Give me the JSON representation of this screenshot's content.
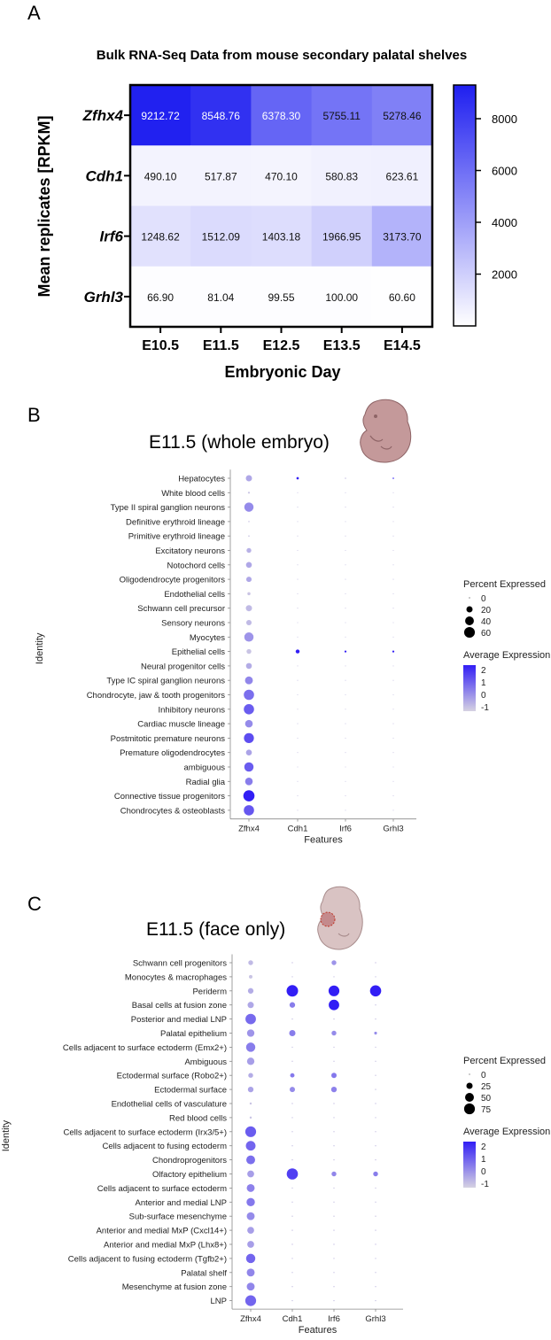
{
  "panels": {
    "a_letter": "A",
    "b_letter": "B",
    "c_letter": "C"
  },
  "chart_data": [
    {
      "type": "heatmap",
      "title": "Bulk RNA-Seq Data from mouse secondary palatal shelves",
      "xlabel": "Embryonic Day",
      "ylabel": "Mean replicates [RPKM]",
      "x": [
        "E10.5",
        "E11.5",
        "E12.5",
        "E13.5",
        "E14.5"
      ],
      "y": [
        "Zfhx4",
        "Cdh1",
        "Irf6",
        "Grhl3"
      ],
      "values": [
        [
          9212.72,
          8548.76,
          6378.3,
          5755.11,
          5278.46
        ],
        [
          490.1,
          517.87,
          470.1,
          580.83,
          623.61
        ],
        [
          1248.62,
          1512.09,
          1403.18,
          1966.95,
          3173.7
        ],
        [
          66.9,
          81.04,
          99.55,
          100.0,
          60.6
        ]
      ],
      "value_labels": [
        [
          "9212.72",
          "8548.76",
          "6378.30",
          "5755.11",
          "5278.46"
        ],
        [
          "490.10",
          "517.87",
          "470.10",
          "580.83",
          "623.61"
        ],
        [
          "1248.62",
          "1512.09",
          "1403.18",
          "1966.95",
          "3173.70"
        ],
        [
          "66.90",
          "81.04",
          "99.55",
          "100.00",
          "60.60"
        ]
      ],
      "colorbar": {
        "range": [
          0,
          9300
        ],
        "ticks": [
          2000,
          4000,
          6000,
          8000
        ],
        "low_color": "#ffffff",
        "high_color": "#1f1ff0"
      }
    },
    {
      "type": "scatter",
      "title": "E11.5 (whole embryo)",
      "xlabel": "Features",
      "ylabel": "Identity",
      "features": [
        "Zfhx4",
        "Cdh1",
        "Irf6",
        "Grhl3"
      ],
      "identities": [
        "Hepatocytes",
        "White blood cells",
        "Type II spiral ganglion neurons",
        "Definitive erythroid lineage",
        "Primitive erythroid lineage",
        "Excitatory neurons",
        "Notochord cells",
        "Oligodendrocyte progenitors",
        "Endothelial cells",
        "Schwann cell precursor",
        "Sensory neurons",
        "Myocytes",
        "Epithelial cells",
        "Neural progenitor cells",
        "Type IC spiral ganglion neurons",
        "Chondrocyte, jaw & tooth progenitors",
        "Inhibitory neurons",
        "Cardiac muscle lineage",
        "Postmitotic premature neurons",
        "Premature oligodendrocytes",
        "ambiguous",
        "Radial glia",
        "Connective tissue progenitors",
        "Chondrocytes & osteoblasts"
      ],
      "percent_expressed": [
        [
          20,
          3,
          1,
          1
        ],
        [
          2,
          0.5,
          0.5,
          0.5
        ],
        [
          45,
          0.5,
          0.5,
          0.5
        ],
        [
          1,
          0.5,
          0.5,
          0.5
        ],
        [
          1,
          0.5,
          0.5,
          0.5
        ],
        [
          12,
          0.5,
          0.5,
          0.5
        ],
        [
          18,
          0.5,
          0.5,
          0.5
        ],
        [
          15,
          0.5,
          0.5,
          0.5
        ],
        [
          5,
          0.5,
          0.5,
          0.5
        ],
        [
          20,
          0.5,
          0.5,
          0.5
        ],
        [
          15,
          0.5,
          0.5,
          0.5
        ],
        [
          45,
          0.5,
          0.5,
          0.5
        ],
        [
          12,
          8,
          2,
          2
        ],
        [
          18,
          0.5,
          0.5,
          0.5
        ],
        [
          32,
          0.5,
          0.5,
          0.5
        ],
        [
          55,
          0.5,
          0.5,
          0.5
        ],
        [
          55,
          0.5,
          0.5,
          0.5
        ],
        [
          30,
          0.5,
          0.5,
          0.5
        ],
        [
          52,
          0.5,
          0.5,
          0.5
        ],
        [
          18,
          0.5,
          0.5,
          0.5
        ],
        [
          45,
          0.5,
          0.5,
          0.5
        ],
        [
          30,
          0.5,
          0.5,
          0.5
        ],
        [
          65,
          0.5,
          0.5,
          0.5
        ],
        [
          55,
          0.5,
          0.5,
          0.5
        ]
      ],
      "average_expression": [
        [
          -0.4,
          2.5,
          -1,
          2.5
        ],
        [
          -1,
          -1,
          -1,
          -1
        ],
        [
          0.2,
          -1,
          -1,
          -1
        ],
        [
          -1,
          -1,
          -1,
          -1
        ],
        [
          -1,
          -1,
          -1,
          -1
        ],
        [
          -0.6,
          -1,
          -1,
          -1
        ],
        [
          -0.4,
          -1,
          -1,
          -1
        ],
        [
          -0.4,
          -1,
          -1,
          -1
        ],
        [
          -1,
          -1,
          -1,
          -1
        ],
        [
          -0.8,
          -1,
          -1,
          -1
        ],
        [
          -0.8,
          -1,
          -1,
          -1
        ],
        [
          0.0,
          -1,
          -1,
          -1
        ],
        [
          -1,
          2.5,
          2.5,
          2.5
        ],
        [
          -0.5,
          -1,
          -1,
          -1
        ],
        [
          0.3,
          -1,
          -1,
          -1
        ],
        [
          0.8,
          -1,
          -1,
          -1
        ],
        [
          1.2,
          -1,
          -1,
          -1
        ],
        [
          0.2,
          -1,
          -1,
          -1
        ],
        [
          1.5,
          -1,
          -1,
          -1
        ],
        [
          -0.3,
          -1,
          -1,
          -1
        ],
        [
          1.2,
          -1,
          -1,
          -1
        ],
        [
          0.5,
          -1,
          -1,
          -1
        ],
        [
          2.5,
          -1,
          -1,
          -1
        ],
        [
          1.3,
          -1,
          -1,
          -1
        ]
      ],
      "legend": {
        "size_title": "Percent Expressed",
        "size_ticks": [
          "0",
          "20",
          "40",
          "60"
        ],
        "color_title": "Average Expression",
        "color_ticks": [
          "2",
          "1",
          "0",
          "-1"
        ]
      }
    },
    {
      "type": "scatter",
      "title": "E11.5 (face only)",
      "xlabel": "Features",
      "ylabel": "Identity",
      "features": [
        "Zfhx4",
        "Cdh1",
        "Irf6",
        "Grhl3"
      ],
      "identities": [
        "Schwann cell progenitors",
        "Monocytes & macrophages",
        "Periderm",
        "Basal cells at fusion zone",
        "Posterior and medial LNP",
        "Palatal epithelium",
        "Cells adjacent to surface ectoderm (Emx2+)",
        "Ambiguous",
        "Ectodermal surface (Robo2+)",
        "Ectodermal surface",
        "Endothelial cells of vasculature",
        "Red blood cells",
        "Cells adjacent to surface ectoderm (Irx3/5+)",
        "Cells adjacent to fusing ectoderm",
        "Chondroprogenitors",
        "Olfactory epithelium",
        "Cells adjacent to surface ectoderm",
        "Anterior and medial LNP",
        "Sub-surface mesenchyme",
        "Anterior and medial MxP (Cxcl14+)",
        "Anterior and medial MxP (Lhx8+)",
        "Cells adjacent to fusing ectoderm (Tgfb2+)",
        "Palatal shelf",
        "Mesenchyme at fusion zone",
        "LNP"
      ],
      "percent_expressed": [
        [
          15,
          1,
          15,
          1
        ],
        [
          8,
          1,
          1,
          1
        ],
        [
          20,
          85,
          75,
          80
        ],
        [
          25,
          20,
          70,
          1
        ],
        [
          70,
          1,
          1,
          1
        ],
        [
          35,
          25,
          15,
          5
        ],
        [
          55,
          1,
          1,
          1
        ],
        [
          35,
          1,
          1,
          1
        ],
        [
          15,
          12,
          18,
          1
        ],
        [
          20,
          18,
          20,
          1
        ],
        [
          3,
          1,
          1,
          1
        ],
        [
          3,
          1,
          1,
          1
        ],
        [
          75,
          1,
          1,
          1
        ],
        [
          60,
          1,
          1,
          1
        ],
        [
          50,
          1,
          1,
          1
        ],
        [
          30,
          80,
          15,
          15
        ],
        [
          40,
          1,
          1,
          1
        ],
        [
          45,
          1,
          1,
          1
        ],
        [
          40,
          1,
          1,
          1
        ],
        [
          30,
          1,
          1,
          1
        ],
        [
          30,
          1,
          1,
          1
        ],
        [
          55,
          1,
          1,
          1
        ],
        [
          40,
          1,
          1,
          1
        ],
        [
          40,
          1,
          1,
          1
        ],
        [
          75,
          1,
          1,
          1
        ]
      ],
      "average_expression": [
        [
          -0.8,
          -1,
          0.0,
          -1
        ],
        [
          -1,
          -1,
          -1,
          -1
        ],
        [
          -0.5,
          2.5,
          2.5,
          2.5
        ],
        [
          -0.4,
          0.5,
          2.5,
          -1
        ],
        [
          0.9,
          -1,
          -1,
          -1
        ],
        [
          0.0,
          0.5,
          0.2,
          0.2
        ],
        [
          0.5,
          -1,
          -1,
          -1
        ],
        [
          -0.2,
          -1,
          -1,
          -1
        ],
        [
          -0.5,
          0.6,
          0.6,
          -1
        ],
        [
          -0.3,
          0.2,
          0.4,
          -1
        ],
        [
          -1,
          -1,
          -1,
          -1
        ],
        [
          -1,
          -1,
          -1,
          -1
        ],
        [
          1.2,
          -1,
          -1,
          -1
        ],
        [
          1.0,
          -1,
          -1,
          -1
        ],
        [
          0.8,
          -1,
          -1,
          -1
        ],
        [
          -0.2,
          1.8,
          0.3,
          0.5
        ],
        [
          0.4,
          -1,
          -1,
          -1
        ],
        [
          0.6,
          -1,
          -1,
          -1
        ],
        [
          0.2,
          -1,
          -1,
          -1
        ],
        [
          -0.2,
          -1,
          -1,
          -1
        ],
        [
          -0.2,
          -1,
          -1,
          -1
        ],
        [
          1.0,
          -1,
          -1,
          -1
        ],
        [
          0.3,
          -1,
          -1,
          -1
        ],
        [
          0.3,
          -1,
          -1,
          -1
        ],
        [
          1.0,
          -1,
          -1,
          -1
        ]
      ],
      "legend": {
        "size_title": "Percent Expressed",
        "size_ticks": [
          "0",
          "25",
          "50",
          "75"
        ],
        "color_title": "Average Expression",
        "color_ticks": [
          "2",
          "1",
          "0",
          "-1"
        ]
      }
    }
  ]
}
